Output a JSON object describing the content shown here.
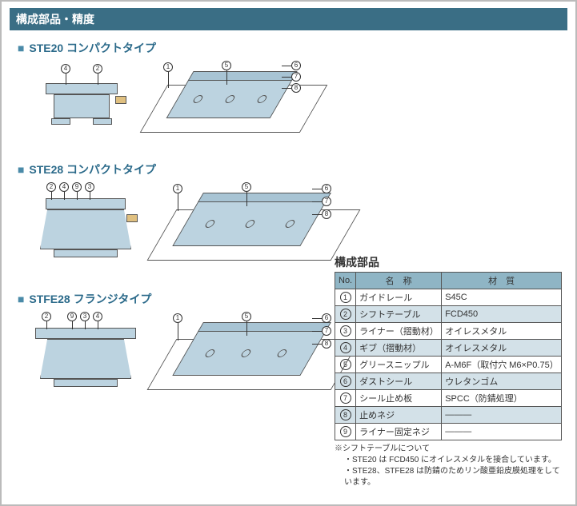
{
  "header": "構成部品・精度",
  "sections": [
    {
      "title": "STE20 コンパクトタイプ",
      "left_balloons": [
        "4",
        "2"
      ],
      "right_balloons": [
        "1",
        "5",
        "6",
        "7",
        "8"
      ]
    },
    {
      "title": "STE28 コンパクトタイプ",
      "left_balloons": [
        "2",
        "4",
        "9",
        "3"
      ],
      "right_balloons": [
        "1",
        "5",
        "6",
        "7",
        "8"
      ]
    },
    {
      "title": "STFE28 フランジタイプ",
      "left_balloons": [
        "2",
        "9",
        "3",
        "4"
      ],
      "right_balloons": [
        "1",
        "5",
        "6",
        "7",
        "8"
      ]
    }
  ],
  "parts": {
    "title": "構成部品",
    "head_no": "No.",
    "head_name": "名　称",
    "head_mat": "材　質",
    "rows": [
      {
        "no": "1",
        "name": "ガイドレール",
        "mat": "S45C",
        "shaded": false
      },
      {
        "no": "2",
        "name": "シフトテーブル",
        "mat": "FCD450",
        "shaded": true
      },
      {
        "no": "3",
        "name": "ライナー（摺動材）",
        "mat": "オイレスメタル",
        "shaded": false
      },
      {
        "no": "4",
        "name": "ギブ（摺動材）",
        "mat": "オイレスメタル",
        "shaded": true
      },
      {
        "no": "5",
        "name": "グリースニップル",
        "mat": "A-M6F（取付穴 M6×P0.75）",
        "shaded": false
      },
      {
        "no": "6",
        "name": "ダストシール",
        "mat": "ウレタンゴム",
        "shaded": true
      },
      {
        "no": "7",
        "name": "シール止め板",
        "mat": "SPCC（防錆処理）",
        "shaded": false
      },
      {
        "no": "8",
        "name": "止めネジ",
        "mat": "—",
        "shaded": true
      },
      {
        "no": "9",
        "name": "ライナー固定ネジ",
        "mat": "—",
        "shaded": false
      }
    ],
    "note_lead": "※シフトテーブルについて",
    "note_1": "・STE20 は FCD450 にオイレスメタルを接合しています。",
    "note_2": "・STE28、STFE28 は防錆のためリン酸亜鉛皮膜処理をしています。"
  },
  "colors": {
    "header_bg": "#3a6e85",
    "accent": "#2b6a8a",
    "part_fill": "#bcd3e0",
    "table_head": "#8fb5c5",
    "table_shaded": "#d3e1e8"
  }
}
